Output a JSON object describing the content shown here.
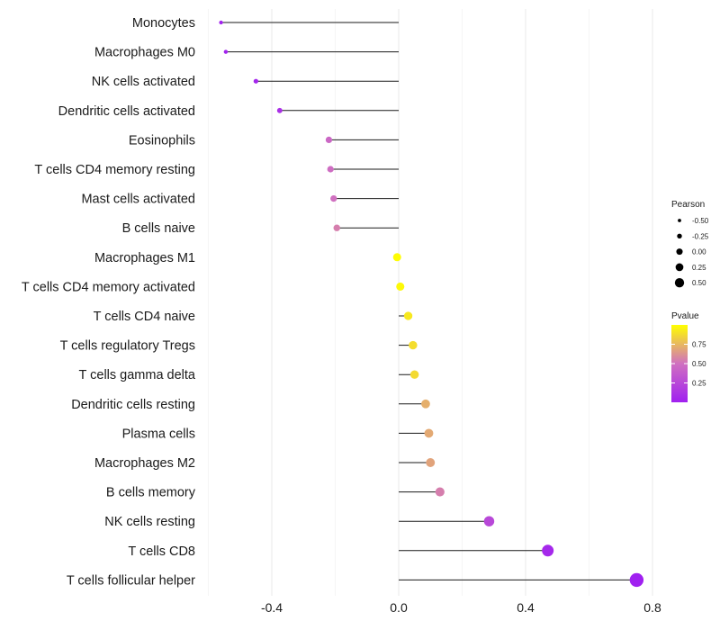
{
  "chart_data": {
    "type": "lollipop",
    "title": "",
    "xlabel": "",
    "ylabel": "",
    "xlim": [
      -0.6,
      0.8
    ],
    "xticks": [
      -0.4,
      0.0,
      0.4,
      0.8
    ],
    "xtick_labels": [
      "-0.4",
      "0.0",
      "0.4",
      "0.8"
    ],
    "grid": true,
    "baseline": 0.0,
    "categories": [
      "Monocytes",
      "Macrophages M0",
      "NK cells activated",
      "Dendritic cells activated",
      "Eosinophils",
      "T cells CD4 memory resting",
      "Mast cells activated",
      "B cells naive",
      "Macrophages M1",
      "T cells CD4 memory activated",
      "T cells CD4 naive",
      "T cells regulatory  Tregs ",
      "T cells gamma delta",
      "Dendritic cells resting",
      "Plasma cells",
      "Macrophages M2",
      "B cells memory",
      "NK cells resting",
      "T cells CD8",
      "T cells follicular helper"
    ],
    "pearson": [
      -0.56,
      -0.545,
      -0.45,
      -0.375,
      -0.22,
      -0.215,
      -0.205,
      -0.195,
      -0.005,
      0.005,
      0.03,
      0.045,
      0.05,
      0.085,
      0.095,
      0.1,
      0.13,
      0.285,
      0.47,
      0.75
    ],
    "pvalue": [
      0.02,
      0.02,
      0.04,
      0.1,
      0.45,
      0.48,
      0.5,
      0.55,
      0.99,
      0.98,
      0.92,
      0.88,
      0.87,
      0.72,
      0.7,
      0.68,
      0.55,
      0.25,
      0.05,
      0.001
    ],
    "size_legend": {
      "title": "Pearson",
      "values": [
        -0.5,
        -0.25,
        0.0,
        0.25,
        0.5
      ],
      "labels": [
        "-0.50",
        "-0.25",
        "0.00",
        "0.25",
        "0.50"
      ]
    },
    "color_legend": {
      "title": "Pvalue",
      "ticks": [
        0.25,
        0.5,
        0.75
      ],
      "tick_labels": [
        "0.25",
        "0.50",
        "0.75"
      ],
      "range": [
        0.0,
        1.0
      ],
      "colors": [
        "#a020f0",
        "#d070c0",
        "#ffff00"
      ]
    }
  }
}
